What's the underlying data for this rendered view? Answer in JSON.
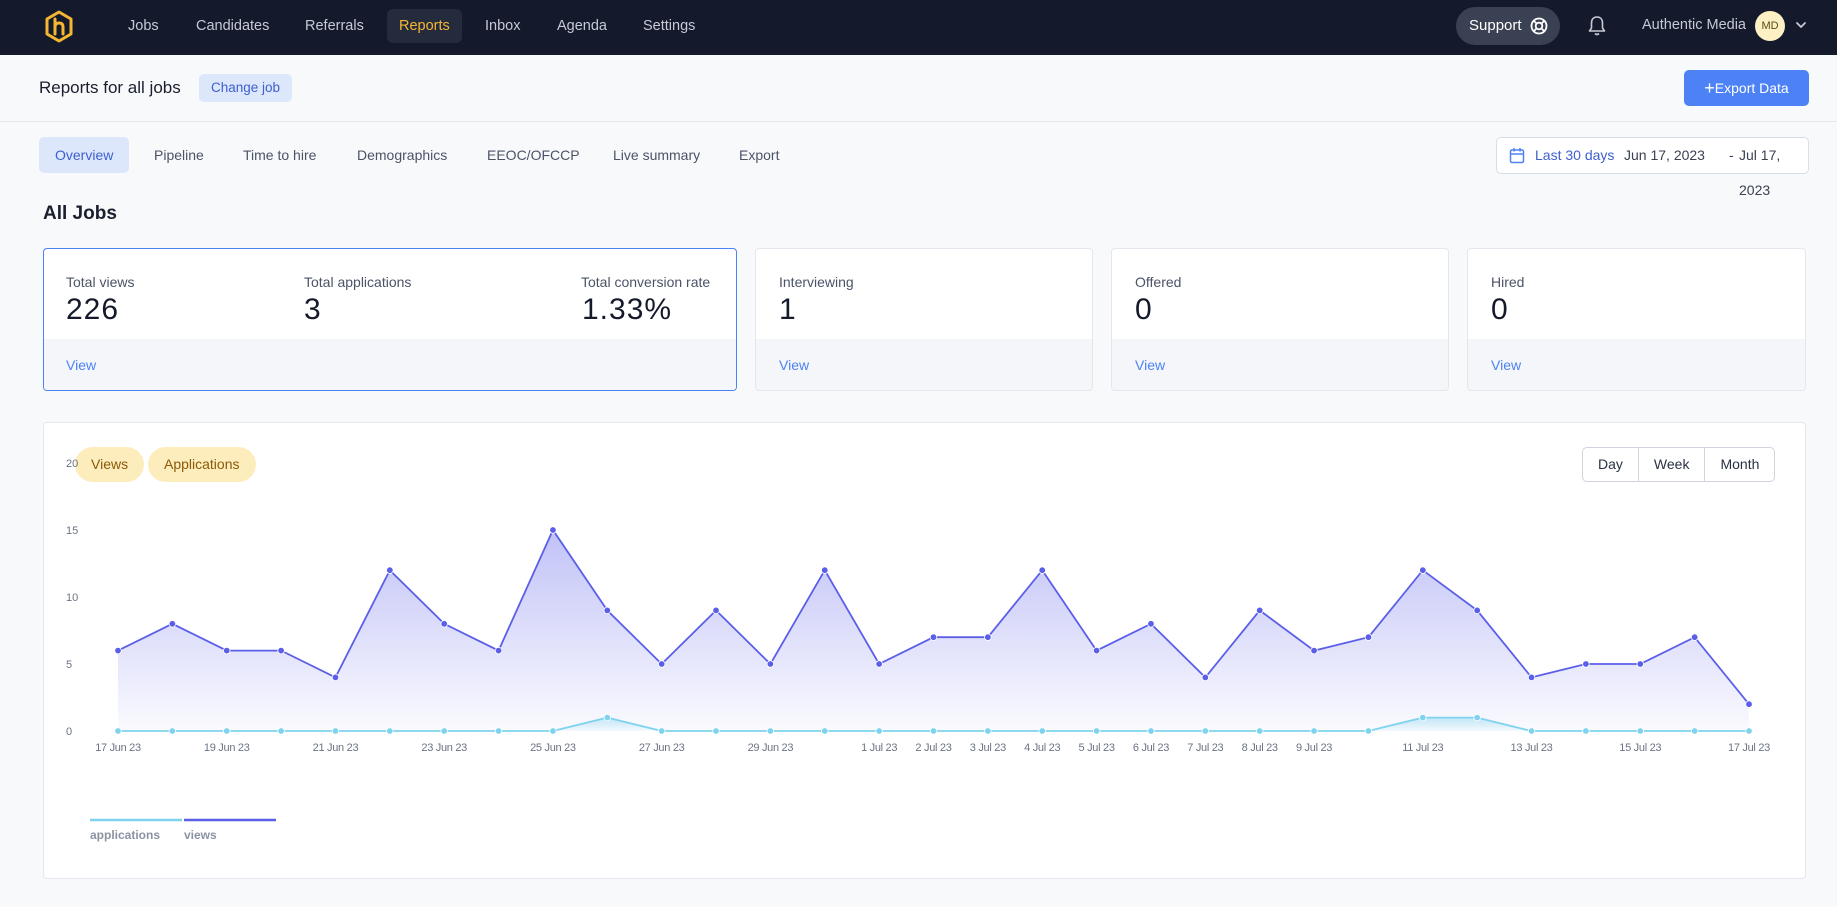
{
  "nav": {
    "items": [
      "Jobs",
      "Candidates",
      "Referrals",
      "Reports",
      "Inbox",
      "Agenda",
      "Settings"
    ],
    "active": "Reports",
    "support_label": "Support",
    "company": "Authentic Media",
    "avatar_initials": "MD"
  },
  "header": {
    "title": "Reports for all jobs",
    "change_job": "Change job",
    "export_label": "Export Data"
  },
  "tabs": [
    "Overview",
    "Pipeline",
    "Time to hire",
    "Demographics",
    "EEOC/OFCCP",
    "Live summary",
    "Export"
  ],
  "active_tab": "Overview",
  "date_range": {
    "preset": "Last 30 days",
    "start": "Jun 17, 2023",
    "separator": "-",
    "end": "Jul 17, 2023"
  },
  "section_title": "All Jobs",
  "cards": {
    "main": {
      "stats": [
        {
          "label": "Total views",
          "value": "226"
        },
        {
          "label": "Total applications",
          "value": "3"
        },
        {
          "label": "Total conversion rate",
          "value": "1.33%"
        }
      ],
      "link": "View"
    },
    "interviewing": {
      "label": "Interviewing",
      "value": "1",
      "link": "View"
    },
    "offered": {
      "label": "Offered",
      "value": "0",
      "link": "View"
    },
    "hired": {
      "label": "Hired",
      "value": "0",
      "link": "View"
    }
  },
  "chart_toggles": [
    "Views",
    "Applications"
  ],
  "granularity": [
    "Day",
    "Week",
    "Month"
  ],
  "colors": {
    "views": "#5b5fe8",
    "applications": "#7fd3ee",
    "accent": "#4c82f5",
    "nav_active": "#f5b731"
  },
  "chart_data": {
    "type": "area",
    "x": [
      "17 Jun 23",
      "18 Jun 23",
      "19 Jun 23",
      "20 Jun 23",
      "21 Jun 23",
      "22 Jun 23",
      "23 Jun 23",
      "24 Jun 23",
      "25 Jun 23",
      "26 Jun 23",
      "27 Jun 23",
      "28 Jun 23",
      "29 Jun 23",
      "30 Jun 23",
      "1 Jul 23",
      "2 Jul 23",
      "3 Jul 23",
      "4 Jul 23",
      "5 Jul 23",
      "6 Jul 23",
      "7 Jul 23",
      "8 Jul 23",
      "9 Jul 23",
      "10 Jul 23",
      "11 Jul 23",
      "12 Jul 23",
      "13 Jul 23",
      "14 Jul 23",
      "15 Jul 23",
      "16 Jul 23",
      "17 Jul 23"
    ],
    "tick_labels": [
      "17 Jun 23",
      "19 Jun 23",
      "21 Jun 23",
      "23 Jun 23",
      "25 Jun 23",
      "27 Jun 23",
      "29 Jun 23",
      "1 Jul 23",
      "2 Jul 23",
      "3 Jul 23",
      "4 Jul 23",
      "5 Jul 23",
      "6 Jul 23",
      "7 Jul 23",
      "8 Jul 23",
      "9 Jul 23",
      "11 Jul 23",
      "13 Jul 23",
      "15 Jul 23",
      "17 Jul 23"
    ],
    "series": [
      {
        "name": "views",
        "values": [
          6,
          8,
          6,
          6,
          4,
          12,
          8,
          6,
          15,
          9,
          5,
          9,
          5,
          12,
          5,
          7,
          7,
          12,
          6,
          8,
          4,
          9,
          6,
          7,
          12,
          9,
          4,
          5,
          5,
          7,
          2
        ]
      },
      {
        "name": "applications",
        "values": [
          0,
          0,
          0,
          0,
          0,
          0,
          0,
          0,
          0,
          1,
          0,
          0,
          0,
          0,
          0,
          0,
          0,
          0,
          0,
          0,
          0,
          0,
          0,
          0,
          1,
          1,
          0,
          0,
          0,
          0,
          0
        ]
      }
    ],
    "yticks": [
      0,
      5,
      10,
      15,
      20
    ],
    "ylim": [
      0,
      20
    ],
    "legend": "bottom-left"
  }
}
